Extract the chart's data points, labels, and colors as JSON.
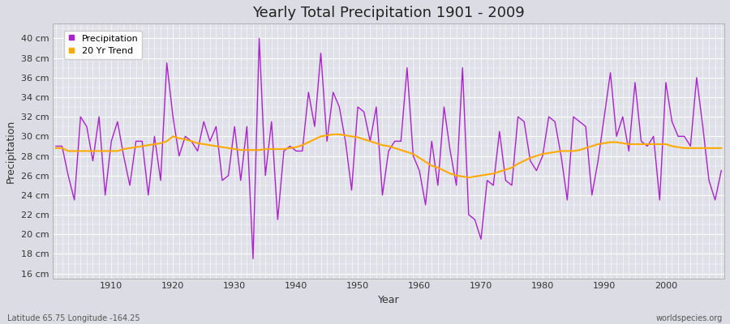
{
  "title": "Yearly Total Precipitation 1901 - 2009",
  "xlabel": "Year",
  "ylabel": "Precipitation",
  "subtitle": "Latitude 65.75 Longitude -164.25",
  "watermark": "worldspecies.org",
  "bg_color": "#dcdce4",
  "plot_bg_color": "#e0e0e8",
  "precip_color": "#aa22cc",
  "trend_color": "#ffaa00",
  "ylim": [
    15.5,
    41.5
  ],
  "years": [
    1901,
    1902,
    1903,
    1904,
    1905,
    1906,
    1907,
    1908,
    1909,
    1910,
    1911,
    1912,
    1913,
    1914,
    1915,
    1916,
    1917,
    1918,
    1919,
    1920,
    1921,
    1922,
    1923,
    1924,
    1925,
    1926,
    1927,
    1928,
    1929,
    1930,
    1931,
    1932,
    1933,
    1934,
    1935,
    1936,
    1937,
    1938,
    1939,
    1940,
    1941,
    1942,
    1943,
    1944,
    1945,
    1946,
    1947,
    1948,
    1949,
    1950,
    1951,
    1952,
    1953,
    1954,
    1955,
    1956,
    1957,
    1958,
    1959,
    1960,
    1961,
    1962,
    1963,
    1964,
    1965,
    1966,
    1967,
    1968,
    1969,
    1970,
    1971,
    1972,
    1973,
    1974,
    1975,
    1976,
    1977,
    1978,
    1979,
    1980,
    1981,
    1982,
    1983,
    1984,
    1985,
    1986,
    1987,
    1988,
    1989,
    1990,
    1991,
    1992,
    1993,
    1994,
    1995,
    1996,
    1997,
    1998,
    1999,
    2000,
    2001,
    2002,
    2003,
    2004,
    2005,
    2006,
    2007,
    2008,
    2009
  ],
  "precip": [
    29.0,
    29.0,
    26.0,
    23.5,
    32.0,
    31.0,
    27.5,
    32.0,
    24.0,
    29.5,
    31.5,
    28.0,
    25.0,
    29.5,
    29.5,
    24.0,
    30.0,
    25.5,
    37.5,
    32.0,
    28.0,
    30.0,
    29.5,
    28.5,
    31.5,
    29.5,
    31.0,
    25.5,
    26.0,
    31.0,
    25.5,
    31.0,
    17.5,
    40.0,
    26.0,
    31.5,
    21.5,
    28.5,
    29.0,
    28.5,
    28.5,
    34.5,
    31.0,
    38.5,
    29.5,
    34.5,
    33.0,
    29.5,
    24.5,
    33.0,
    32.5,
    29.5,
    33.0,
    24.0,
    28.5,
    29.5,
    29.5,
    37.0,
    28.0,
    26.5,
    23.0,
    29.5,
    25.0,
    33.0,
    28.5,
    25.0,
    37.0,
    22.0,
    21.5,
    19.5,
    25.5,
    25.0,
    30.5,
    25.5,
    25.0,
    32.0,
    31.5,
    27.5,
    26.5,
    28.0,
    32.0,
    31.5,
    28.0,
    23.5,
    32.0,
    31.5,
    31.0,
    24.0,
    27.5,
    32.0,
    36.5,
    30.0,
    32.0,
    28.5,
    35.5,
    29.5,
    29.0,
    30.0,
    23.5,
    35.5,
    31.5,
    30.0,
    30.0,
    29.0,
    36.0,
    31.0,
    25.5,
    23.5,
    26.5
  ],
  "trend": [
    28.8,
    28.8,
    28.5,
    28.5,
    28.5,
    28.5,
    28.5,
    28.5,
    28.5,
    28.5,
    28.5,
    28.7,
    28.8,
    28.9,
    29.0,
    29.1,
    29.2,
    29.3,
    29.5,
    30.0,
    29.8,
    29.7,
    29.5,
    29.3,
    29.2,
    29.1,
    29.0,
    28.9,
    28.8,
    28.7,
    28.6,
    28.6,
    28.6,
    28.6,
    28.7,
    28.7,
    28.7,
    28.7,
    28.8,
    28.9,
    29.1,
    29.4,
    29.7,
    30.0,
    30.1,
    30.2,
    30.2,
    30.1,
    30.0,
    29.9,
    29.7,
    29.5,
    29.3,
    29.1,
    29.0,
    28.8,
    28.6,
    28.4,
    28.2,
    27.8,
    27.4,
    27.0,
    26.8,
    26.5,
    26.2,
    26.0,
    25.9,
    25.8,
    25.9,
    26.0,
    26.1,
    26.2,
    26.4,
    26.6,
    26.8,
    27.2,
    27.5,
    27.8,
    28.0,
    28.2,
    28.3,
    28.4,
    28.5,
    28.5,
    28.5,
    28.6,
    28.8,
    29.0,
    29.2,
    29.3,
    29.4,
    29.4,
    29.3,
    29.2,
    29.2,
    29.2,
    29.2,
    29.2,
    29.2,
    29.2,
    29.0,
    28.9,
    28.8,
    28.8,
    28.8,
    28.8,
    28.8,
    28.8,
    28.8
  ],
  "xticks": [
    1910,
    1920,
    1930,
    1940,
    1950,
    1960,
    1970,
    1980,
    1990,
    2000
  ],
  "yticks": [
    16,
    18,
    20,
    22,
    24,
    26,
    28,
    30,
    32,
    34,
    36,
    38,
    40
  ]
}
